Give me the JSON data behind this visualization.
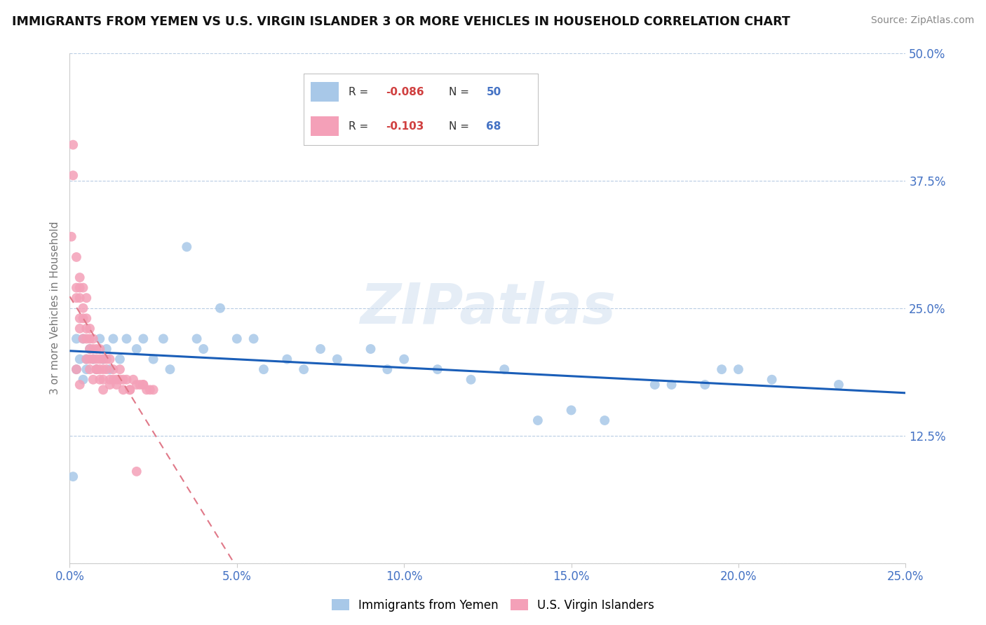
{
  "title": "IMMIGRANTS FROM YEMEN VS U.S. VIRGIN ISLANDER 3 OR MORE VEHICLES IN HOUSEHOLD CORRELATION CHART",
  "source": "Source: ZipAtlas.com",
  "ylabel": "3 or more Vehicles in Household",
  "xlim": [
    0.0,
    0.25
  ],
  "ylim": [
    0.0,
    0.5
  ],
  "xticks": [
    0.0,
    0.05,
    0.1,
    0.15,
    0.2,
    0.25
  ],
  "yticks": [
    0.0,
    0.125,
    0.25,
    0.375,
    0.5
  ],
  "xticklabels": [
    "0.0%",
    "5.0%",
    "10.0%",
    "15.0%",
    "20.0%",
    "25.0%"
  ],
  "yticklabels_right": [
    "",
    "12.5%",
    "25.0%",
    "37.5%",
    "50.0%"
  ],
  "blue_R": -0.086,
  "blue_N": 50,
  "pink_R": -0.103,
  "pink_N": 68,
  "blue_color": "#a8c8e8",
  "pink_color": "#f4a0b8",
  "blue_line_color": "#1a5eb8",
  "pink_line_color": "#e07888",
  "watermark_text": "ZIPatlas",
  "legend_label_blue": "Immigrants from Yemen",
  "legend_label_pink": "U.S. Virgin Islanders",
  "blue_scatter_x": [
    0.001,
    0.002,
    0.002,
    0.003,
    0.004,
    0.004,
    0.005,
    0.005,
    0.006,
    0.007,
    0.008,
    0.009,
    0.01,
    0.011,
    0.012,
    0.013,
    0.015,
    0.017,
    0.02,
    0.022,
    0.025,
    0.028,
    0.03,
    0.035,
    0.038,
    0.04,
    0.045,
    0.05,
    0.055,
    0.058,
    0.065,
    0.07,
    0.075,
    0.08,
    0.09,
    0.095,
    0.1,
    0.11,
    0.12,
    0.13,
    0.14,
    0.15,
    0.16,
    0.175,
    0.18,
    0.19,
    0.195,
    0.2,
    0.21,
    0.23
  ],
  "blue_scatter_y": [
    0.085,
    0.19,
    0.22,
    0.2,
    0.18,
    0.22,
    0.2,
    0.19,
    0.21,
    0.2,
    0.19,
    0.22,
    0.2,
    0.21,
    0.19,
    0.22,
    0.2,
    0.22,
    0.21,
    0.22,
    0.2,
    0.22,
    0.19,
    0.31,
    0.22,
    0.21,
    0.25,
    0.22,
    0.22,
    0.19,
    0.2,
    0.19,
    0.21,
    0.2,
    0.21,
    0.19,
    0.2,
    0.19,
    0.18,
    0.19,
    0.14,
    0.15,
    0.14,
    0.175,
    0.175,
    0.175,
    0.19,
    0.19,
    0.18,
    0.175
  ],
  "pink_scatter_x": [
    0.0005,
    0.001,
    0.001,
    0.002,
    0.002,
    0.002,
    0.003,
    0.003,
    0.003,
    0.003,
    0.004,
    0.004,
    0.004,
    0.005,
    0.005,
    0.005,
    0.005,
    0.006,
    0.006,
    0.006,
    0.006,
    0.007,
    0.007,
    0.007,
    0.008,
    0.008,
    0.008,
    0.009,
    0.009,
    0.009,
    0.01,
    0.01,
    0.01,
    0.011,
    0.011,
    0.012,
    0.012,
    0.013,
    0.013,
    0.014,
    0.015,
    0.015,
    0.016,
    0.017,
    0.018,
    0.019,
    0.02,
    0.021,
    0.022,
    0.023,
    0.024,
    0.025,
    0.003,
    0.004,
    0.005,
    0.006,
    0.007,
    0.008,
    0.009,
    0.01,
    0.012,
    0.014,
    0.016,
    0.002,
    0.003,
    0.02,
    0.018,
    0.022
  ],
  "pink_scatter_y": [
    0.32,
    0.41,
    0.38,
    0.26,
    0.27,
    0.3,
    0.26,
    0.28,
    0.24,
    0.27,
    0.25,
    0.24,
    0.27,
    0.22,
    0.24,
    0.26,
    0.23,
    0.22,
    0.21,
    0.23,
    0.2,
    0.21,
    0.2,
    0.22,
    0.2,
    0.21,
    0.19,
    0.2,
    0.21,
    0.19,
    0.19,
    0.2,
    0.18,
    0.19,
    0.2,
    0.18,
    0.2,
    0.18,
    0.19,
    0.18,
    0.18,
    0.19,
    0.18,
    0.18,
    0.17,
    0.18,
    0.175,
    0.175,
    0.175,
    0.17,
    0.17,
    0.17,
    0.23,
    0.22,
    0.2,
    0.19,
    0.18,
    0.19,
    0.18,
    0.17,
    0.175,
    0.175,
    0.17,
    0.19,
    0.175,
    0.09,
    0.17,
    0.175
  ]
}
